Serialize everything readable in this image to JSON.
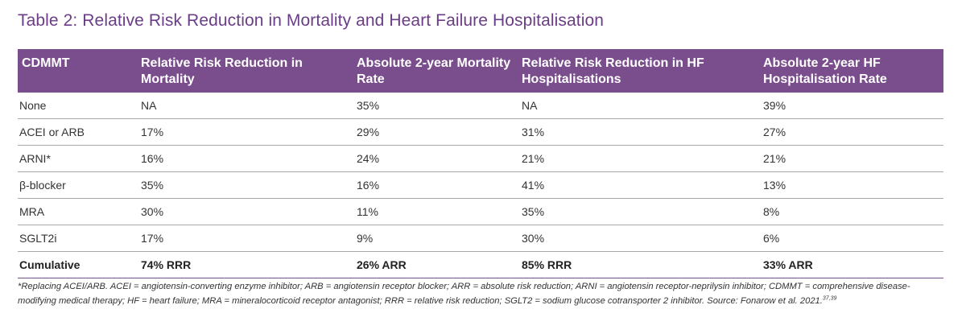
{
  "title": "Table 2: Relative Risk Reduction in Mortality and Heart Failure Hospitalisation",
  "table": {
    "headers": [
      "CDMMT",
      "Relative Risk Reduction in Mortality",
      "Absolute 2-year Mortality Rate",
      "Relative Risk Reduction in HF Hospitalisations",
      "Absolute 2-year HF Hospitalisation Rate"
    ],
    "rows": [
      [
        "None",
        "NA",
        "35%",
        "NA",
        "39%"
      ],
      [
        "ACEI or ARB",
        "17%",
        "29%",
        "31%",
        "27%"
      ],
      [
        "ARNI*",
        "16%",
        "24%",
        "21%",
        "21%"
      ],
      [
        "β-blocker",
        "35%",
        "16%",
        "41%",
        "13%"
      ],
      [
        "MRA",
        "30%",
        "11%",
        "35%",
        "8%"
      ],
      [
        "SGLT2i",
        "17%",
        "9%",
        "30%",
        "6%"
      ]
    ],
    "total": [
      "Cumulative",
      "74% RRR",
      "26% ARR",
      "85% RRR",
      "33% ARR"
    ]
  },
  "footnote": {
    "text": "*Replacing ACEI/ARB. ACEI = angiotensin-converting enzyme inhibitor; ARB = angiotensin receptor blocker; ARR = absolute risk reduction; ARNI = angiotensin receptor-neprilysin inhibitor; CDMMT = comprehensive disease-modifying medical therapy; HF = heart failure; MRA = mineralocorticoid receptor antagonist; RRR = relative risk reduction; SGLT2 = sodium glucose cotransporter 2 inhibitor. Source: Fonarow et al. 2021.",
    "superscript": "37,39"
  },
  "colors": {
    "accent": "#7a4d8c",
    "title": "#6b3d87"
  }
}
